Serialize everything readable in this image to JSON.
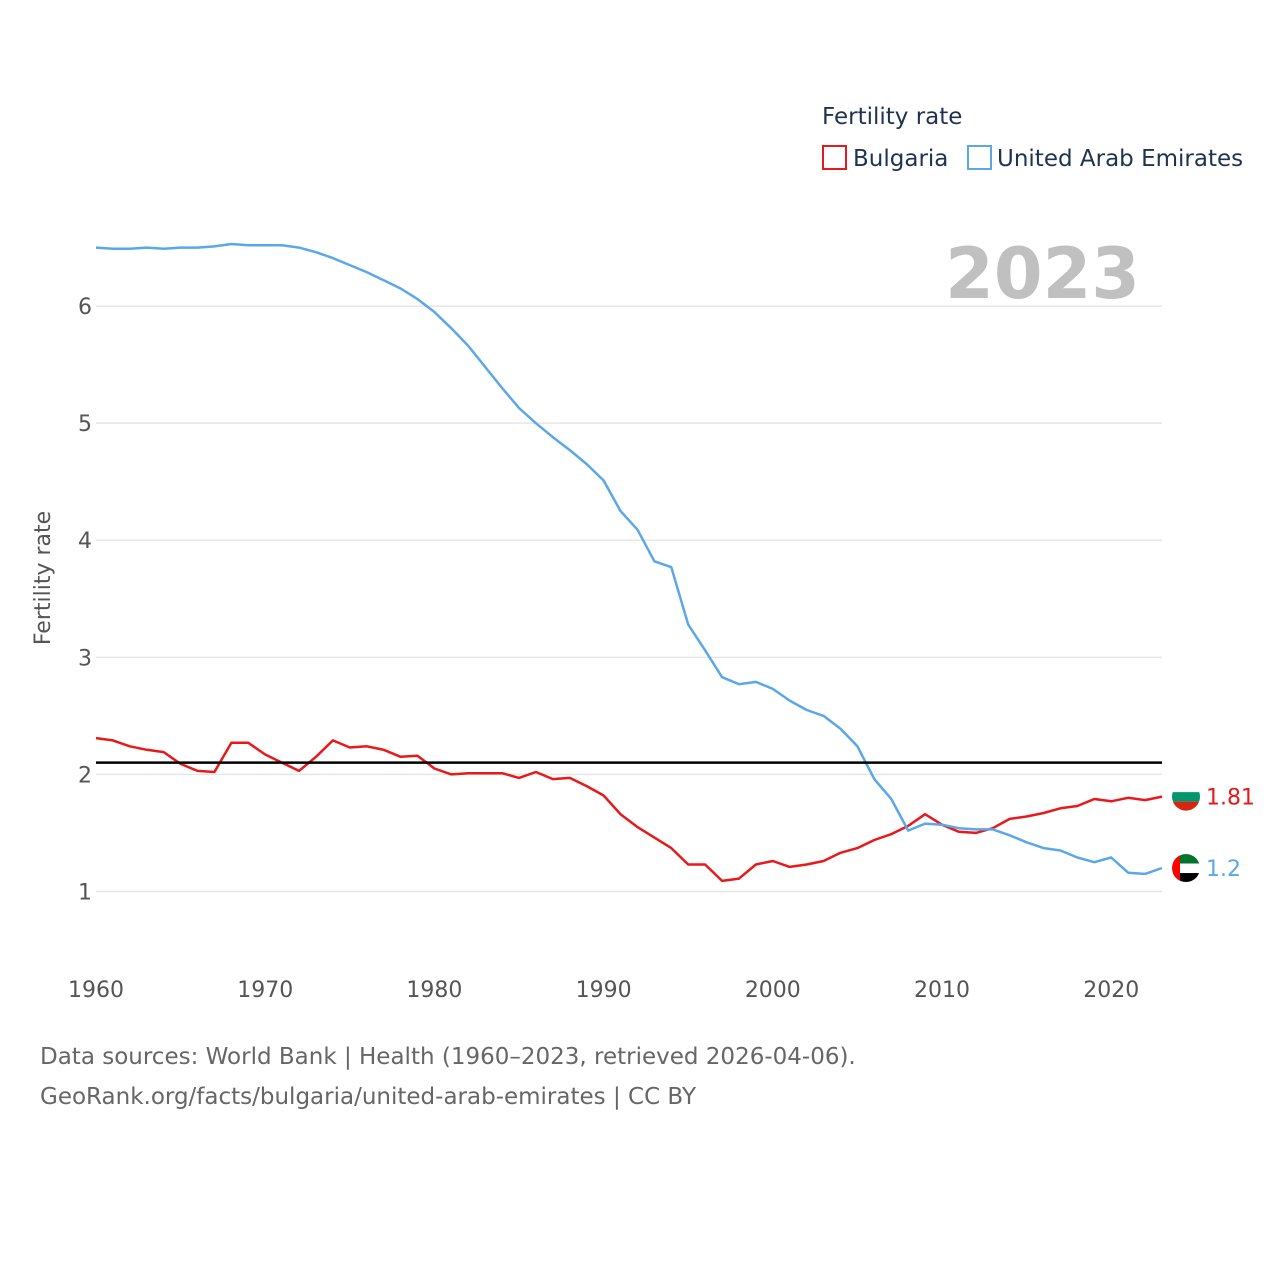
{
  "chart_data": {
    "type": "line",
    "ylabel": "Fertility rate",
    "xlabel": "",
    "legend_title": "Fertility rate",
    "legend_position": "top-right",
    "year_label": "2023",
    "xlim": [
      1960,
      2023
    ],
    "ylim": [
      0.5,
      6.65
    ],
    "x_ticks": [
      1960,
      1970,
      1980,
      1990,
      2000,
      2010,
      2020
    ],
    "y_ticks": [
      1,
      2,
      3,
      4,
      5,
      6
    ],
    "reference_line": 2.1,
    "x": [
      1960,
      1961,
      1962,
      1963,
      1964,
      1965,
      1966,
      1967,
      1968,
      1969,
      1970,
      1971,
      1972,
      1973,
      1974,
      1975,
      1976,
      1977,
      1978,
      1979,
      1980,
      1981,
      1982,
      1983,
      1984,
      1985,
      1986,
      1987,
      1988,
      1989,
      1990,
      1991,
      1992,
      1993,
      1994,
      1995,
      1996,
      1997,
      1998,
      1999,
      2000,
      2001,
      2002,
      2003,
      2004,
      2005,
      2006,
      2007,
      2008,
      2009,
      2010,
      2011,
      2012,
      2013,
      2014,
      2015,
      2016,
      2017,
      2018,
      2019,
      2020,
      2021,
      2022,
      2023
    ],
    "series": [
      {
        "name": "Bulgaria",
        "color": "#e8191b",
        "end_label": "1.81",
        "flag": "bulgaria-flag-icon",
        "values": [
          2.31,
          2.29,
          2.24,
          2.21,
          2.19,
          2.09,
          2.03,
          2.02,
          2.27,
          2.27,
          2.17,
          2.1,
          2.03,
          2.15,
          2.29,
          2.23,
          2.24,
          2.21,
          2.15,
          2.16,
          2.05,
          2.0,
          2.01,
          2.01,
          2.01,
          1.97,
          2.02,
          1.96,
          1.97,
          1.9,
          1.82,
          1.66,
          1.55,
          1.46,
          1.37,
          1.23,
          1.23,
          1.09,
          1.11,
          1.23,
          1.26,
          1.21,
          1.23,
          1.26,
          1.33,
          1.37,
          1.44,
          1.49,
          1.56,
          1.66,
          1.57,
          1.51,
          1.5,
          1.54,
          1.62,
          1.64,
          1.67,
          1.71,
          1.73,
          1.79,
          1.77,
          1.8,
          1.78,
          1.81
        ]
      },
      {
        "name": "United Arab Emirates",
        "color": "#5ba7e8",
        "end_label": "1.2",
        "flag": "uae-flag-icon",
        "values": [
          6.5,
          6.49,
          6.49,
          6.5,
          6.49,
          6.5,
          6.5,
          6.51,
          6.53,
          6.52,
          6.52,
          6.52,
          6.5,
          6.46,
          6.41,
          6.35,
          6.29,
          6.22,
          6.15,
          6.06,
          5.95,
          5.81,
          5.66,
          5.48,
          5.3,
          5.13,
          5.0,
          4.88,
          4.77,
          4.65,
          4.51,
          4.25,
          4.09,
          3.82,
          3.77,
          3.28,
          3.06,
          2.83,
          2.77,
          2.79,
          2.73,
          2.63,
          2.55,
          2.5,
          2.39,
          2.24,
          1.96,
          1.79,
          1.52,
          1.58,
          1.57,
          1.54,
          1.53,
          1.53,
          1.48,
          1.42,
          1.37,
          1.35,
          1.29,
          1.25,
          1.29,
          1.16,
          1.15,
          1.2
        ]
      }
    ]
  },
  "footer": {
    "source_line1": "Data sources: World Bank | Health (1960–2023, retrieved 2026-04-06).",
    "source_line2": "GeoRank.org/facts/bulgaria/united-arab-emirates | CC BY"
  }
}
